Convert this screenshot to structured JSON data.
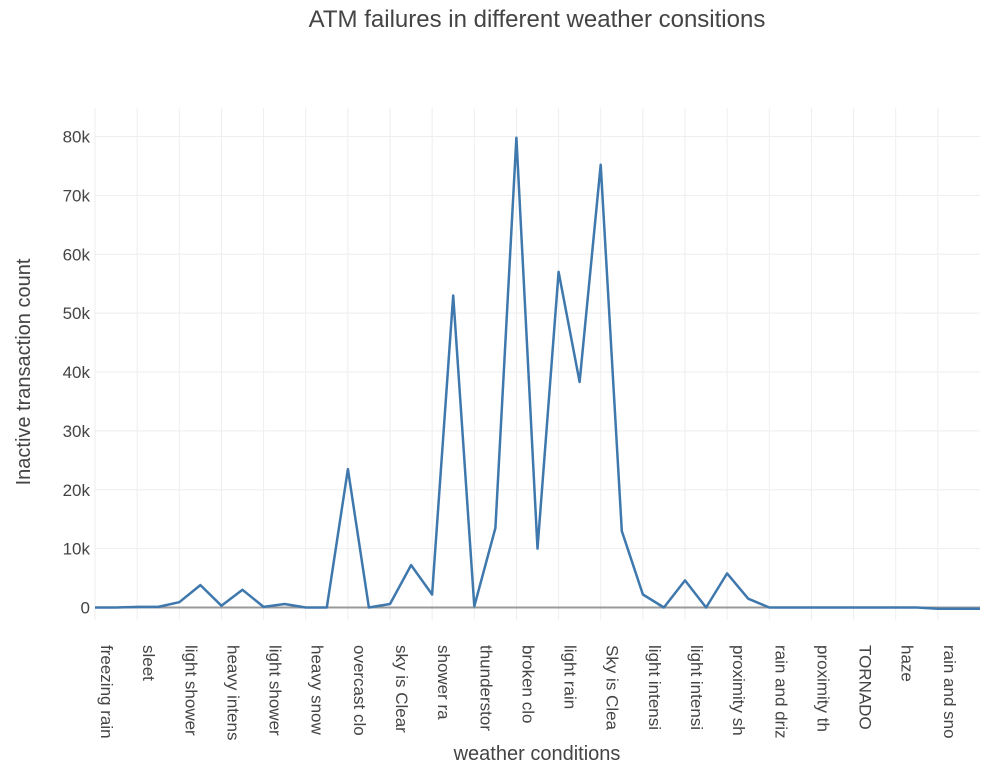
{
  "chart_data": {
    "type": "line",
    "title": "ATM failures in different weather consitions",
    "xlabel": "weather conditions",
    "ylabel": "Inactive transaction count",
    "ylim": [
      -2000,
      82000
    ],
    "y_ticks": [
      0,
      10000,
      20000,
      30000,
      40000,
      50000,
      60000,
      70000,
      80000
    ],
    "y_tick_labels": [
      "0",
      "10k",
      "20k",
      "30k",
      "40k",
      "50k",
      "60k",
      "70k",
      "80k"
    ],
    "grid": true,
    "x_tick_labels": [
      "freezing rain",
      "sleet",
      "light shower",
      "heavy intens",
      "light shower",
      "heavy snow",
      "overcast clo",
      "sky is Clear",
      "shower ra",
      "thunderstor",
      "broken clo",
      "light rain",
      "Sky is Clea",
      "light intensi",
      "light intensi",
      "proximity sh",
      "rain and driz",
      "proximity th",
      "TORNADO",
      "haze",
      "rain and sno"
    ],
    "series": [
      {
        "color": "#3f78ad",
        "values": [
          0,
          0,
          100,
          100,
          900,
          3800,
          300,
          3000,
          100,
          600,
          0,
          0,
          23500,
          0,
          600,
          7200,
          2200,
          53000,
          200,
          13500,
          79800,
          10000,
          57000,
          38300,
          75200,
          13000,
          2200,
          0,
          4600,
          0,
          5800,
          1500,
          0,
          0,
          0,
          0,
          0,
          0,
          0,
          0,
          -200,
          -200,
          -200
        ]
      }
    ]
  }
}
